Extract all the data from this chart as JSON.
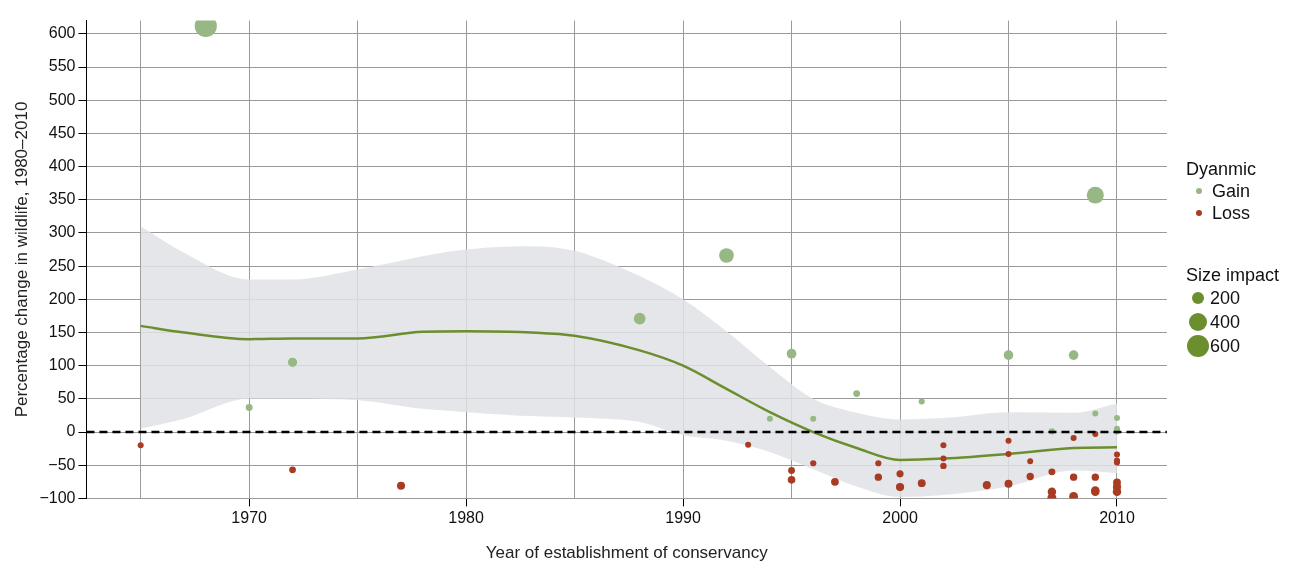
{
  "chart_data": {
    "type": "bubble",
    "xlabel": "Year of establishment of conservancy",
    "ylabel": "Percentage change in wildlife, 1980–2010",
    "legend_title": "Dyanmic",
    "legend": "right",
    "grid": true,
    "annotations": [
      "Size impact"
    ],
    "size_legend": [
      200,
      400,
      600
    ],
    "xlim": [
      1962.5,
      2012.3
    ],
    "ylim": [
      -100,
      620
    ],
    "xticks": [
      {
        "value": 1965,
        "label": null
      },
      1970,
      {
        "value": 1975,
        "label": null
      },
      1980,
      {
        "value": 1985,
        "label": null
      },
      1990,
      {
        "value": 1995,
        "label": null
      },
      2000,
      {
        "value": 2005,
        "label": null
      },
      2010
    ],
    "yticks": [
      {
        "value": -100,
        "label": "−100"
      },
      {
        "value": -50,
        "label": "−50"
      },
      0,
      50,
      100,
      150,
      200,
      250,
      300,
      350,
      400,
      450,
      500,
      550,
      600
    ],
    "ref_lines": [
      {
        "axis": "y",
        "value": 0,
        "color": "#000000",
        "line_style": "dashed"
      }
    ],
    "series": [
      {
        "name": "Gain",
        "type": "bubble",
        "color": "#97b885",
        "x": [
          1968,
          1970,
          1972,
          1988,
          1992,
          1994,
          1995,
          1996,
          1998,
          2001,
          2005,
          2007,
          2008,
          2009,
          2009,
          2010,
          2010,
          2010
        ],
        "values": [
          612,
          37,
          105,
          171,
          266,
          20,
          118,
          20,
          58,
          46,
          116,
          1,
          116,
          357,
          28,
          21,
          5,
          1
        ],
        "sizes": [
          612,
          60,
          105,
          171,
          266,
          45,
          118,
          45,
          58,
          46,
          116,
          45,
          116,
          357,
          45,
          45,
          45,
          45
        ]
      },
      {
        "name": "Loss",
        "type": "bubble",
        "color": "#a83b22",
        "x": [
          1965,
          1972,
          1977,
          1993,
          1995,
          1995,
          1996,
          1997,
          1999,
          1999,
          2000,
          2000,
          2001,
          2002,
          2002,
          2002,
          2004,
          2005,
          2005,
          2005,
          2006,
          2006,
          2007,
          2007,
          2007,
          2008,
          2008,
          2008,
          2009,
          2009,
          2009,
          2009,
          2010,
          2010,
          2010,
          2010,
          2010,
          2010
        ],
        "values": [
          -20,
          -57,
          -81,
          -19,
          -58,
          -72,
          -47,
          -75,
          -47,
          -68,
          -63,
          -83,
          -77,
          -20,
          -40,
          -51,
          -80,
          -13,
          -33,
          -78,
          -44,
          -67,
          -60,
          -90,
          -99,
          -9,
          -68,
          -97,
          -3,
          -68,
          -88,
          -90,
          -34,
          -43,
          -46,
          -76,
          -83,
          -90
        ],
        "sizes": [
          45,
          57,
          81,
          45,
          58,
          72,
          47,
          75,
          47,
          68,
          63,
          83,
          77,
          45,
          45,
          51,
          80,
          45,
          45,
          78,
          44,
          67,
          60,
          90,
          99,
          45,
          68,
          97,
          45,
          68,
          88,
          90,
          45,
          45,
          46,
          76,
          83,
          90
        ]
      },
      {
        "type": "line",
        "color": "#6b8e2f",
        "x": [
          1965,
          1967,
          1970,
          1972,
          1975,
          1978,
          1980,
          1983,
          1985,
          1988,
          1990,
          1992,
          1994,
          1996,
          1998,
          2000,
          2002,
          2005,
          2008,
          2010
        ],
        "values": [
          160,
          150,
          140,
          141,
          141,
          151,
          152,
          150,
          145,
          123,
          100,
          65,
          30,
          0,
          -24,
          -42,
          -40,
          -33,
          -24,
          -23
        ],
        "lower": [
          5,
          20,
          50,
          50,
          48,
          35,
          30,
          24,
          22,
          15,
          -5,
          -13,
          -30,
          -56,
          -82,
          -98,
          -95,
          -82,
          -58,
          -62
        ],
        "upper": [
          310,
          270,
          230,
          230,
          245,
          265,
          275,
          280,
          273,
          235,
          200,
          152,
          98,
          50,
          29,
          19,
          21,
          30,
          29,
          43
        ]
      }
    ]
  }
}
